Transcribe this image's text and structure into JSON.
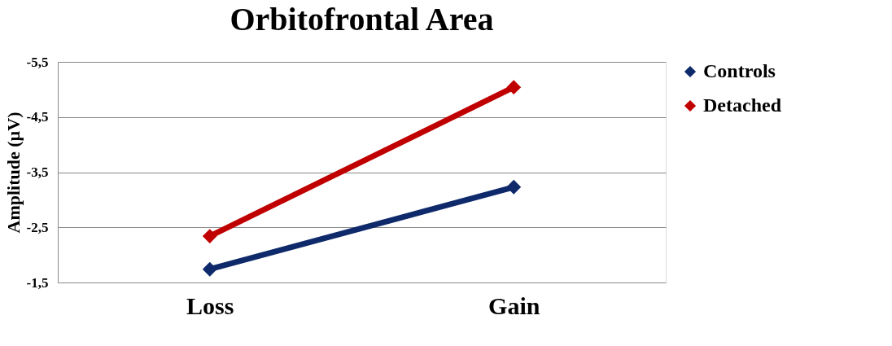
{
  "chart_data": {
    "type": "line",
    "title": "Orbitofrontal Area",
    "ylabel": "Amplitude (µV)",
    "categories": [
      "Loss",
      "Gain"
    ],
    "series": [
      {
        "name": "Controls",
        "color": "#0e2a6b",
        "values": [
          -1.74,
          -3.23
        ]
      },
      {
        "name": "Detached",
        "color": "#c00000",
        "values": [
          -2.34,
          -5.04
        ]
      }
    ],
    "ylim": [
      -1.5,
      -5.5
    ],
    "yticks": [
      {
        "value": -5.5,
        "label": "-5,5"
      },
      {
        "value": -4.5,
        "label": "-4,5"
      },
      {
        "value": -3.5,
        "label": "-3,5"
      },
      {
        "value": -2.5,
        "label": "-2,5"
      },
      {
        "value": -1.5,
        "label": "-1,5"
      }
    ],
    "grid": "y",
    "legend": "right",
    "marker": "diamond",
    "line_style": "solid"
  }
}
